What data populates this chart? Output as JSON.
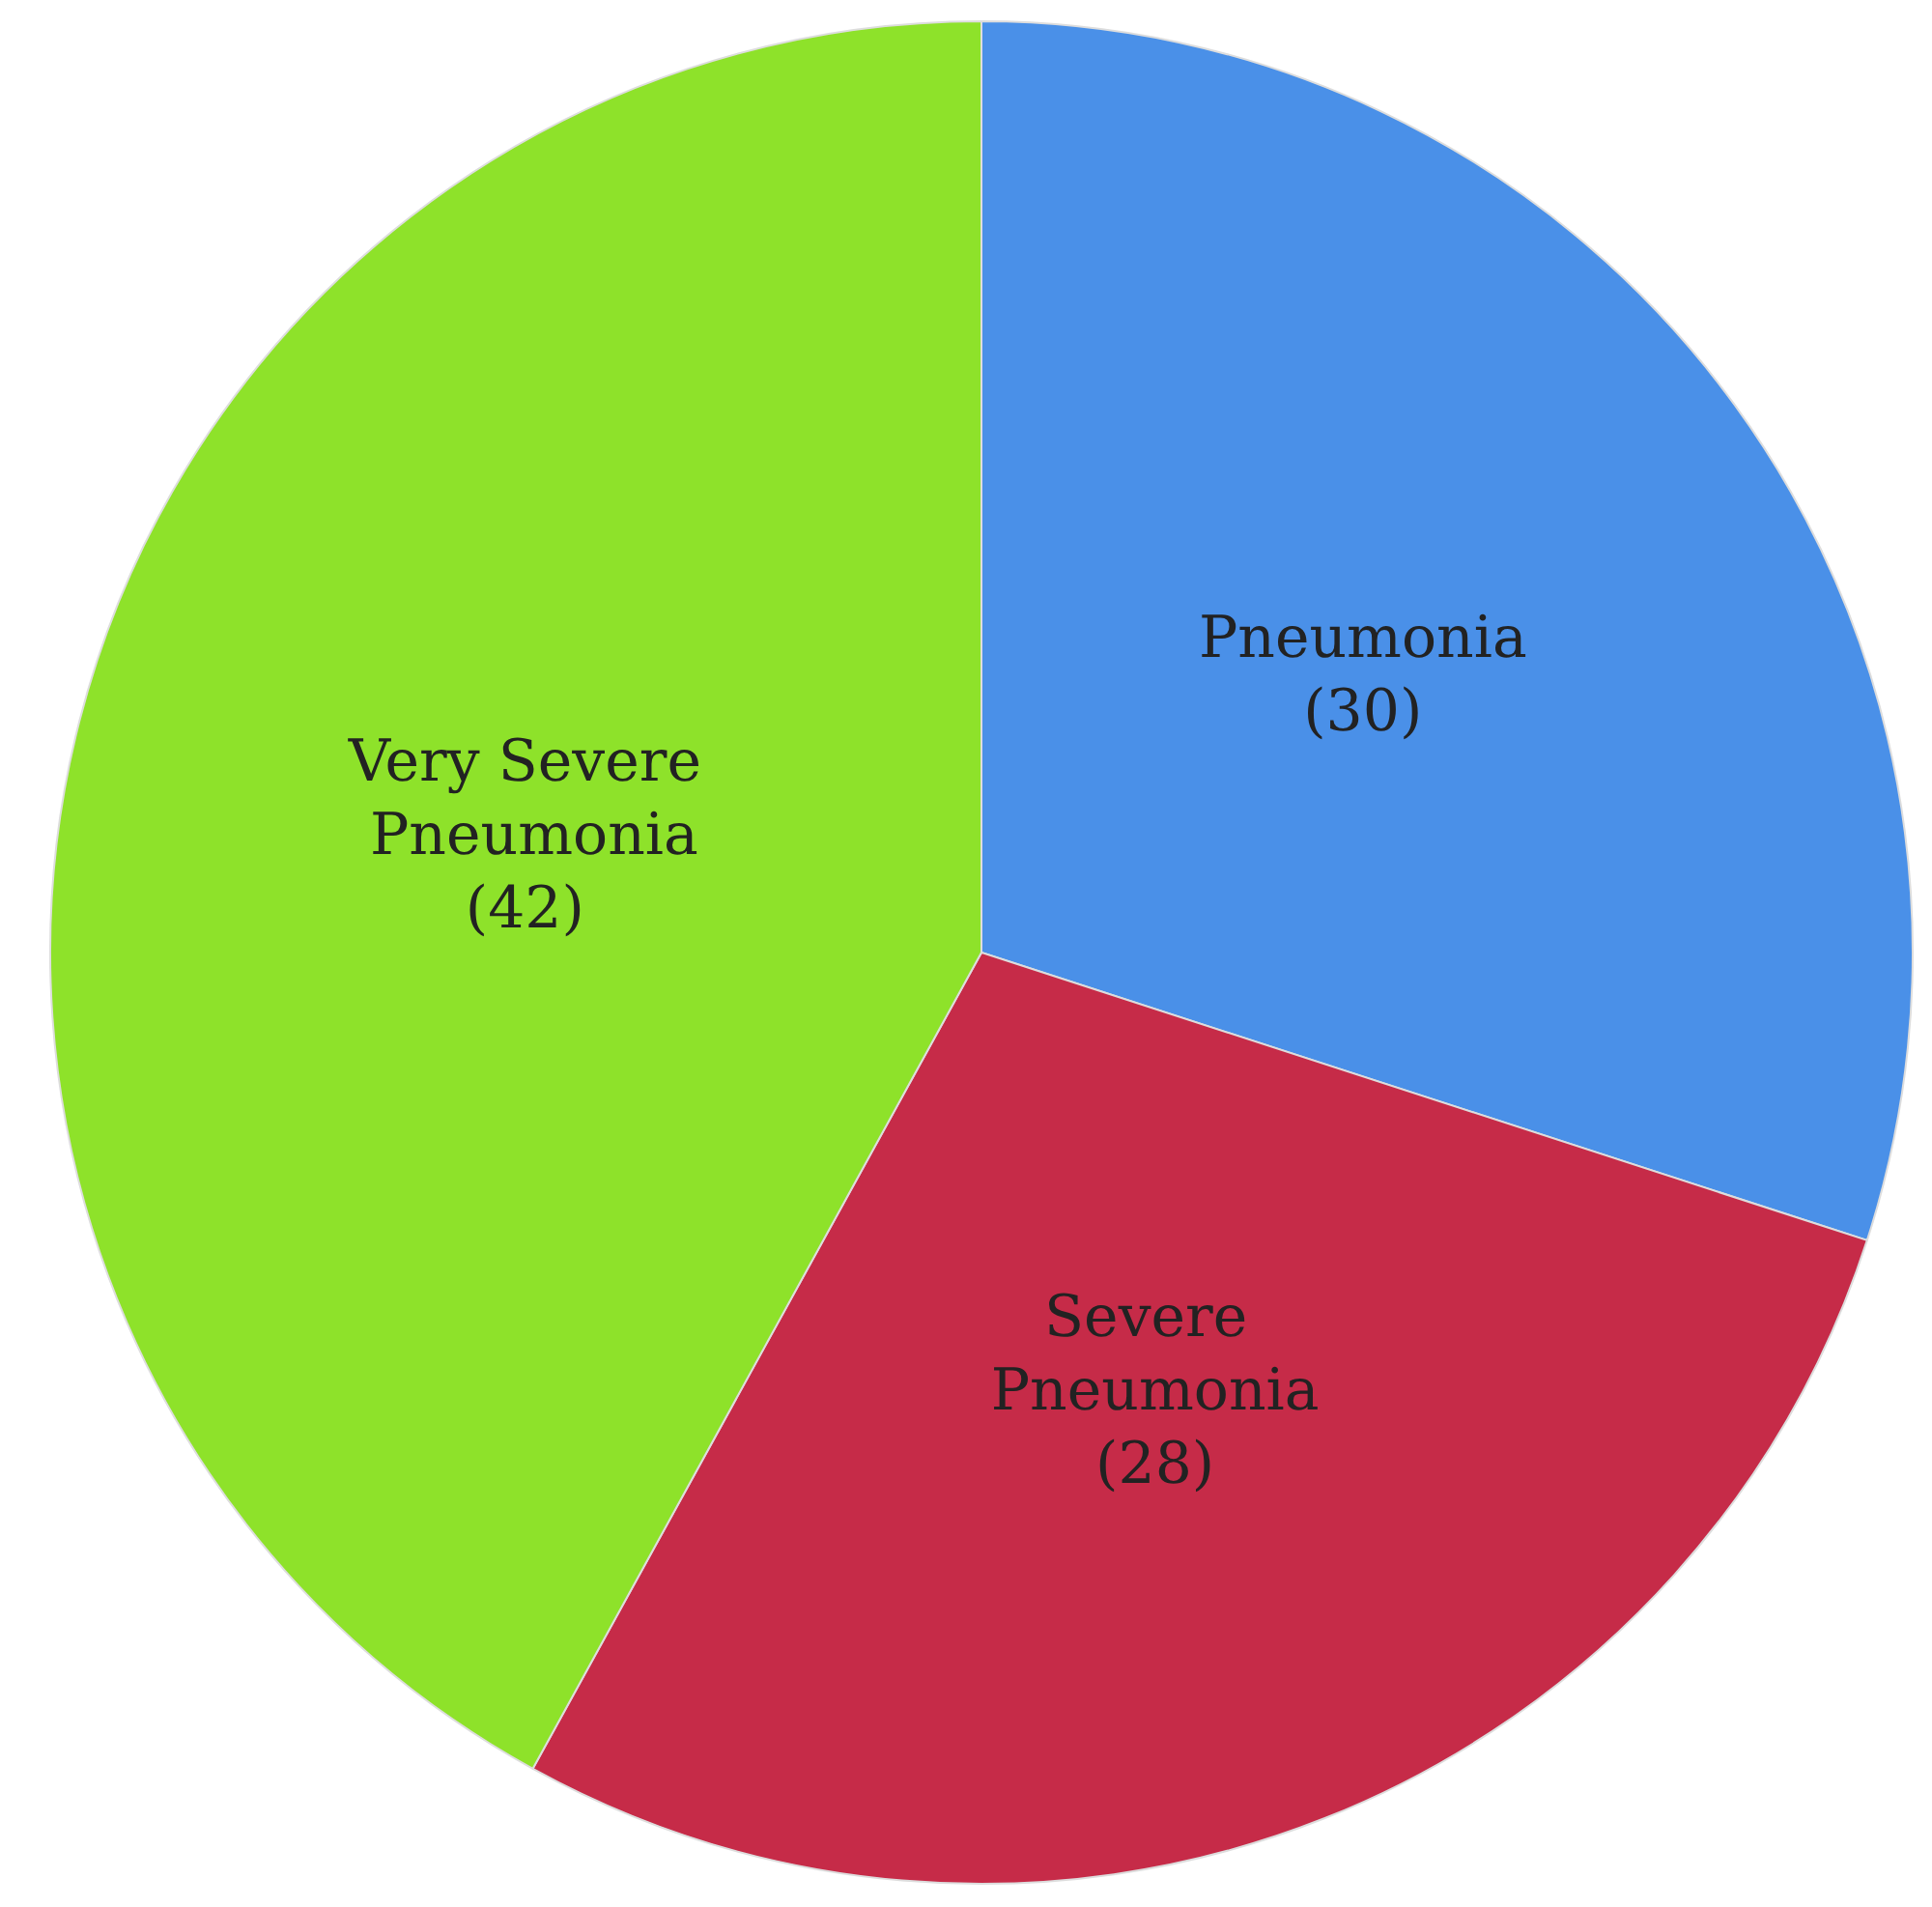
{
  "chart_data": {
    "type": "pie",
    "categories": [
      "Pneumonia",
      "Severe Pneumonia",
      "Very Severe Pneumonia"
    ],
    "values": [
      30,
      28,
      42
    ],
    "value_labels": [
      "(30)",
      "(28)",
      "(42)"
    ],
    "colors": [
      "#4a90e8",
      "#c62b48",
      "#8ee22a"
    ],
    "legend": false
  }
}
